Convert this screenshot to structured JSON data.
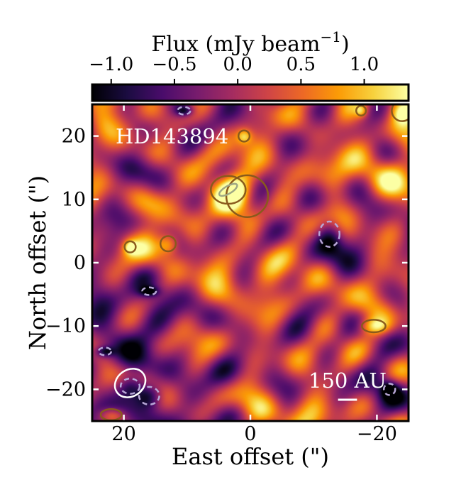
{
  "chart_data": {
    "type": "heatmap",
    "title": "",
    "target_label": "HD143894",
    "xlabel": "East offset (\")",
    "ylabel": "North offset (\")",
    "xlim": [
      25,
      -25
    ],
    "ylim": [
      -25,
      25
    ],
    "xticks": [
      20,
      0,
      -20
    ],
    "xtick_labels": [
      "20",
      "0",
      "−20"
    ],
    "yticks": [
      20,
      10,
      0,
      -10,
      -20
    ],
    "ytick_labels": [
      "20",
      "10",
      "0",
      "−10",
      "−20"
    ],
    "colorbar": {
      "label": "Flux (mJy beam",
      "label_sup": "−1",
      "label_close": ")",
      "range": [
        -1.15,
        1.35
      ],
      "ticks": [
        -1.0,
        -0.5,
        0.0,
        0.5,
        1.0
      ],
      "tick_labels": [
        "−1.0",
        "−0.5",
        "0.0",
        "0.5",
        "1.0"
      ],
      "colormap": [
        "#000004",
        "#1b0c41",
        "#4a0c6b",
        "#781c6d",
        "#a52c60",
        "#cf4446",
        "#ed6925",
        "#fb9b06",
        "#f7d13d",
        "#fcffa4"
      ]
    },
    "scale_bar_label": "150 AU",
    "scale_bar_length_arcsec": 3,
    "beam": {
      "x": 19,
      "y": -19,
      "major": 6,
      "minor": 4.2,
      "pa_deg": -35
    },
    "contours": {
      "positive_color": "#8a5a1c",
      "negative_color": "#b7a6d6"
    },
    "sources": [
      {
        "x": 3.5,
        "y": 11.5,
        "sx": 2.5,
        "sy": 2.0,
        "amp": 1.55,
        "sign": "positive"
      },
      {
        "x": 0.5,
        "y": 10.5,
        "sx": 3.0,
        "sy": 3.0,
        "amp": 0.45,
        "sign": "positive"
      },
      {
        "x": -12.5,
        "y": 4.5,
        "sx": 1.6,
        "sy": 2.0,
        "amp": -1.25,
        "sign": "negative"
      },
      {
        "x": 16,
        "y": -21,
        "sx": 1.6,
        "sy": 1.4,
        "amp": -1.45,
        "sign": "negative"
      },
      {
        "x": 19,
        "y": -19.5,
        "sx": 1.5,
        "sy": 1.2,
        "amp": -0.9,
        "sign": "negative"
      },
      {
        "x": 13,
        "y": 3,
        "sx": 1.1,
        "sy": 1.1,
        "amp": 0.85,
        "sign": "positive"
      },
      {
        "x": 19,
        "y": 2.5,
        "sx": 0.8,
        "sy": 0.8,
        "amp": 0.8,
        "sign": "positive"
      },
      {
        "x": -19.5,
        "y": -10,
        "sx": 1.7,
        "sy": 0.9,
        "amp": 0.75,
        "sign": "positive"
      },
      {
        "x": 1,
        "y": 20,
        "sx": 0.8,
        "sy": 0.8,
        "amp": 0.75,
        "sign": "positive"
      },
      {
        "x": -24,
        "y": 24,
        "sx": 1.5,
        "sy": 1.5,
        "amp": 1.2,
        "sign": "positive"
      },
      {
        "x": -17.5,
        "y": 24,
        "sx": 0.7,
        "sy": 0.7,
        "amp": 0.75,
        "sign": "positive"
      },
      {
        "x": 22,
        "y": -24,
        "sx": 1.5,
        "sy": 0.8,
        "amp": 0.8,
        "sign": "positive"
      },
      {
        "x": 16,
        "y": -4.5,
        "sx": 1.1,
        "sy": 0.6,
        "amp": -0.95,
        "sign": "negative"
      },
      {
        "x": 23,
        "y": -14,
        "sx": 1.0,
        "sy": 0.6,
        "amp": -0.95,
        "sign": "negative"
      },
      {
        "x": 10.5,
        "y": 24,
        "sx": 1.0,
        "sy": 0.6,
        "amp": -0.95,
        "sign": "negative"
      },
      {
        "x": -22,
        "y": -20,
        "sx": 0.9,
        "sy": 0.9,
        "amp": -0.9,
        "sign": "negative"
      }
    ]
  }
}
